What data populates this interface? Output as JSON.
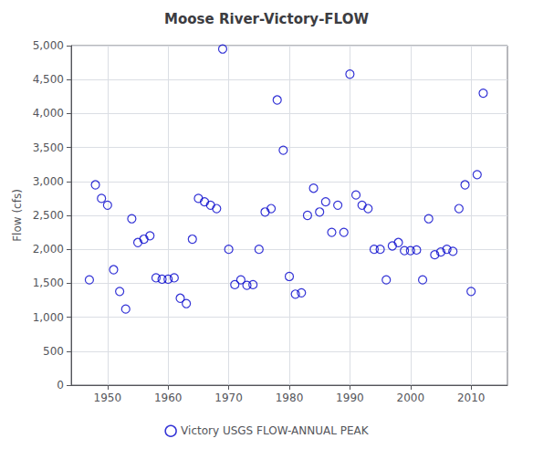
{
  "chart_data": {
    "type": "scatter",
    "title": "Moose River-Victory-FLOW",
    "ylabel": "Flow (cfs)",
    "x": [
      1947,
      1948,
      1949,
      1950,
      1951,
      1952,
      1953,
      1954,
      1955,
      1956,
      1957,
      1958,
      1959,
      1960,
      1961,
      1962,
      1963,
      1964,
      1965,
      1966,
      1967,
      1968,
      1969,
      1970,
      1971,
      1972,
      1973,
      1974,
      1975,
      1976,
      1977,
      1978,
      1979,
      1980,
      1981,
      1982,
      1983,
      1984,
      1985,
      1986,
      1987,
      1988,
      1989,
      1990,
      1991,
      1992,
      1993,
      1994,
      1995,
      1996,
      1997,
      1998,
      1999,
      2000,
      2001,
      2002,
      2003,
      2004,
      2005,
      2006,
      2007,
      2008,
      2009,
      2010,
      2011,
      2012
    ],
    "series": [
      {
        "name": "Victory USGS FLOW-ANNUAL PEAK",
        "color": "#0000cc",
        "marker": "circle",
        "values": [
          1550,
          2950,
          2750,
          2650,
          1700,
          1380,
          1120,
          2450,
          2100,
          2150,
          2200,
          1580,
          1560,
          1560,
          1580,
          1280,
          1200,
          2150,
          2750,
          2700,
          2650,
          2600,
          4950,
          2000,
          1480,
          1550,
          1470,
          1480,
          2000,
          2550,
          2600,
          4200,
          3460,
          1600,
          1340,
          1360,
          2500,
          2900,
          2550,
          2700,
          2250,
          2650,
          2250,
          4580,
          2800,
          2650,
          2600,
          2000,
          2000,
          1550,
          2050,
          2100,
          1980,
          1980,
          1990,
          1550,
          2450,
          1920,
          1960,
          2000,
          1970,
          2600,
          2950,
          1380,
          3100,
          4300
        ]
      }
    ],
    "xlim": [
      1944,
      2016
    ],
    "xticks": [
      1950,
      1960,
      1970,
      1980,
      1990,
      2000,
      2010
    ],
    "ylim": [
      0,
      5000
    ],
    "yticks": [
      0,
      500,
      {
        "value": 1000,
        "label": "1,000"
      },
      {
        "value": 1500,
        "label": "1,500"
      },
      {
        "value": 2000,
        "label": "2,000"
      },
      {
        "value": 2500,
        "label": "2,500"
      },
      {
        "value": 3000,
        "label": "3,000"
      },
      {
        "value": 3500,
        "label": "3,500"
      },
      {
        "value": 4000,
        "label": "4,000"
      },
      {
        "value": 4500,
        "label": "4,500"
      },
      {
        "value": 5000,
        "label": "5,000"
      }
    ],
    "grid": true,
    "legend": "bottom"
  }
}
